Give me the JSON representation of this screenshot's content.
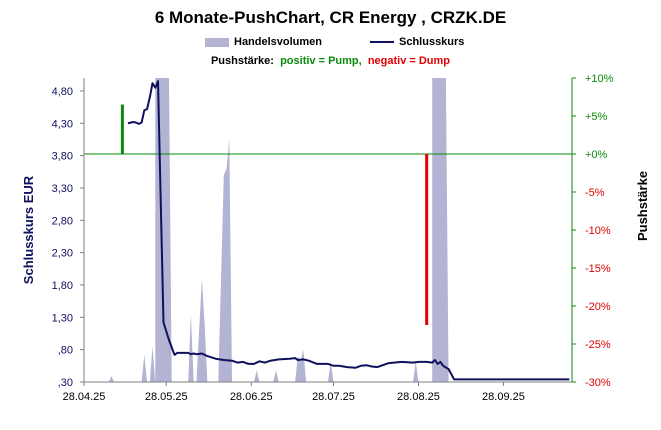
{
  "chart_data": {
    "type": "line",
    "title": "6 Monate-PushChart, CR Energy , CRZK.DE",
    "subtitle_label": "Pushstärke:",
    "subtitle_positive": "positiv = Pump,",
    "subtitle_negative": "negativ = Dump",
    "legend": {
      "volume": "Handelsvolumen",
      "close": "Schlusskurs"
    },
    "ylabel_left": "Schlusskurs EUR",
    "ylabel_right": "Pushstärke",
    "ylim_left": [
      0.3,
      5.0
    ],
    "ylim_right": [
      -30,
      10
    ],
    "xlim": [
      "2025-04-28",
      "2025-10-23"
    ],
    "x_ticks": [
      "28.04.25",
      "28.05.25",
      "28.06.25",
      "28.07.25",
      "28.08.25",
      "28.09.25"
    ],
    "y_left_ticks": [
      ",30",
      ",80",
      "1,30",
      "1,80",
      "2,30",
      "2,80",
      "3,30",
      "3,80",
      "4,30",
      "4,80"
    ],
    "y_right_ticks": [
      "-30%",
      "-25%",
      "-20%",
      "-15%",
      "-10%",
      "-5%",
      "+0%",
      "+5%",
      "+10%"
    ],
    "zero_line": 0,
    "colors": {
      "close": "#10105e",
      "volume": "#b3b3d4",
      "positive": "#0a8a0a",
      "negative": "#e00000"
    },
    "series": [
      {
        "name": "Schlusskurs",
        "axis": "left",
        "points": [
          [
            "2025-05-14",
            4.3
          ],
          [
            "2025-05-15",
            4.31
          ],
          [
            "2025-05-16",
            4.32
          ],
          [
            "2025-05-17",
            4.31
          ],
          [
            "2025-05-18",
            4.29
          ],
          [
            "2025-05-19",
            4.31
          ],
          [
            "2025-05-20",
            4.5
          ],
          [
            "2025-05-21",
            4.52
          ],
          [
            "2025-05-22",
            4.7
          ],
          [
            "2025-05-23",
            4.92
          ],
          [
            "2025-05-24",
            4.85
          ],
          [
            "2025-05-25",
            4.95
          ],
          [
            "2025-05-27",
            1.22
          ],
          [
            "2025-05-29",
            0.95
          ],
          [
            "2025-05-31",
            0.72
          ],
          [
            "2025-06-01",
            0.75
          ],
          [
            "2025-06-05",
            0.75
          ],
          [
            "2025-06-06",
            0.73
          ],
          [
            "2025-06-07",
            0.74
          ],
          [
            "2025-06-08",
            0.73
          ],
          [
            "2025-06-10",
            0.74
          ],
          [
            "2025-06-12",
            0.7
          ],
          [
            "2025-06-15",
            0.66
          ],
          [
            "2025-06-18",
            0.64
          ],
          [
            "2025-06-21",
            0.63
          ],
          [
            "2025-06-23",
            0.6
          ],
          [
            "2025-06-25",
            0.61
          ],
          [
            "2025-06-27",
            0.58
          ],
          [
            "2025-06-29",
            0.58
          ],
          [
            "2025-07-01",
            0.62
          ],
          [
            "2025-07-03",
            0.6
          ],
          [
            "2025-07-05",
            0.63
          ],
          [
            "2025-07-08",
            0.65
          ],
          [
            "2025-07-12",
            0.66
          ],
          [
            "2025-07-14",
            0.67
          ],
          [
            "2025-07-15",
            0.64
          ],
          [
            "2025-07-17",
            0.65
          ],
          [
            "2025-07-19",
            0.63
          ],
          [
            "2025-07-22",
            0.58
          ],
          [
            "2025-07-26",
            0.58
          ],
          [
            "2025-07-28",
            0.55
          ],
          [
            "2025-07-30",
            0.55
          ],
          [
            "2025-08-02",
            0.53
          ],
          [
            "2025-08-05",
            0.52
          ],
          [
            "2025-08-07",
            0.55
          ],
          [
            "2025-08-09",
            0.56
          ],
          [
            "2025-08-11",
            0.54
          ],
          [
            "2025-08-13",
            0.53
          ],
          [
            "2025-08-15",
            0.56
          ],
          [
            "2025-08-17",
            0.59
          ],
          [
            "2025-08-19",
            0.6
          ],
          [
            "2025-08-22",
            0.61
          ],
          [
            "2025-08-26",
            0.6
          ],
          [
            "2025-08-28",
            0.61
          ],
          [
            "2025-08-31",
            0.61
          ],
          [
            "2025-09-02",
            0.6
          ],
          [
            "2025-09-03",
            0.64
          ],
          [
            "2025-09-04",
            0.58
          ],
          [
            "2025-09-05",
            0.61
          ],
          [
            "2025-09-06",
            0.55
          ],
          [
            "2025-09-08",
            0.5
          ],
          [
            "2025-09-10",
            0.34
          ],
          [
            "2025-09-15",
            0.34
          ],
          [
            "2025-10-01",
            0.34
          ],
          [
            "2025-10-22",
            0.34
          ]
        ]
      },
      {
        "name": "Handelsvolumen",
        "axis": "left",
        "type": "area",
        "points": [
          [
            "2025-05-07",
            0.3
          ],
          [
            "2025-05-08",
            0.39
          ],
          [
            "2025-05-09",
            0.3
          ],
          [
            "2025-05-19",
            0.3
          ],
          [
            "2025-05-20",
            0.72
          ],
          [
            "2025-05-21",
            0.3
          ],
          [
            "2025-05-22",
            0.3
          ],
          [
            "2025-05-23",
            0.85
          ],
          [
            "2025-05-24",
            0.3
          ],
          [
            "2025-05-24",
            5.0
          ],
          [
            "2025-05-29",
            5.0
          ],
          [
            "2025-05-30",
            0.3
          ],
          [
            "2025-06-05",
            0.3
          ],
          [
            "2025-06-06",
            1.35
          ],
          [
            "2025-06-07",
            0.3
          ],
          [
            "2025-06-08",
            0.3
          ],
          [
            "2025-06-10",
            1.9
          ],
          [
            "2025-06-11",
            1.2
          ],
          [
            "2025-06-12",
            0.3
          ],
          [
            "2025-06-16",
            0.3
          ],
          [
            "2025-06-18",
            3.5
          ],
          [
            "2025-06-19",
            3.6
          ],
          [
            "2025-06-20",
            4.06
          ],
          [
            "2025-06-21",
            0.3
          ],
          [
            "2025-06-29",
            0.3
          ],
          [
            "2025-06-30",
            0.48
          ],
          [
            "2025-07-01",
            0.3
          ],
          [
            "2025-07-06",
            0.3
          ],
          [
            "2025-07-07",
            0.48
          ],
          [
            "2025-07-08",
            0.3
          ],
          [
            "2025-07-14",
            0.3
          ],
          [
            "2025-07-15",
            0.7
          ],
          [
            "2025-07-16",
            0.62
          ],
          [
            "2025-07-17",
            0.8
          ],
          [
            "2025-07-18",
            0.3
          ],
          [
            "2025-07-26",
            0.3
          ],
          [
            "2025-07-27",
            0.62
          ],
          [
            "2025-07-28",
            0.3
          ],
          [
            "2025-08-26",
            0.3
          ],
          [
            "2025-08-27",
            0.62
          ],
          [
            "2025-08-28",
            0.3
          ],
          [
            "2025-09-02",
            0.3
          ],
          [
            "2025-09-02",
            5.0
          ],
          [
            "2025-09-07",
            5.0
          ],
          [
            "2025-09-08",
            0.3
          ]
        ]
      }
    ],
    "push_bars": [
      {
        "date": "2025-05-12",
        "from": 0,
        "to": 6.5,
        "sign": "positive"
      },
      {
        "date": "2025-08-31",
        "from": 0,
        "to": -22.5,
        "sign": "negative"
      }
    ]
  }
}
